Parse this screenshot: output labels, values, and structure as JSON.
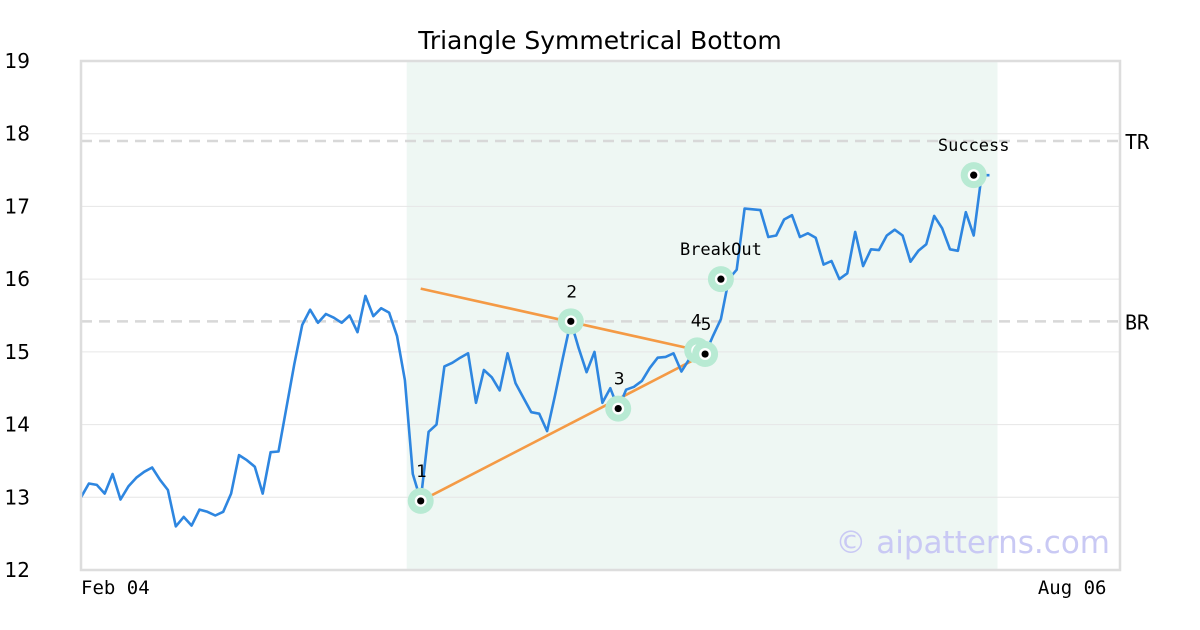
{
  "chart_data": {
    "type": "line",
    "title": "Triangle Symmetrical Bottom",
    "xlabel": "",
    "ylabel": "",
    "ylim": [
      12,
      19
    ],
    "yticks": [
      12,
      13,
      14,
      15,
      16,
      17,
      18,
      19
    ],
    "x_tick_labels": [
      {
        "label": "Feb 04",
        "index": 0
      },
      {
        "label": "Aug 06",
        "index": 125
      }
    ],
    "grid": "horizontal",
    "series": [
      {
        "color": "#2e86e0",
        "values": [
          13.0,
          13.19,
          13.17,
          13.05,
          13.32,
          12.97,
          13.15,
          13.27,
          13.35,
          13.41,
          13.24,
          13.1,
          12.6,
          12.73,
          12.61,
          12.83,
          12.8,
          12.75,
          12.8,
          13.05,
          13.58,
          13.51,
          13.42,
          13.05,
          13.62,
          13.63,
          14.23,
          14.83,
          15.37,
          15.58,
          15.4,
          15.52,
          15.47,
          15.4,
          15.5,
          15.27,
          15.77,
          15.49,
          15.6,
          15.54,
          15.22,
          14.61,
          13.32,
          12.96,
          13.9,
          14.0,
          14.8,
          14.85,
          14.92,
          14.98,
          14.3,
          14.75,
          14.65,
          14.47,
          14.98,
          14.57,
          14.37,
          14.17,
          14.15,
          13.91,
          14.4,
          14.92,
          15.42,
          15.05,
          14.72,
          15.0,
          14.3,
          14.5,
          14.22,
          14.48,
          14.52,
          14.6,
          14.78,
          14.92,
          14.93,
          14.98,
          14.73,
          14.9,
          15.05,
          14.97,
          15.22,
          15.45,
          16.0,
          16.13,
          16.97,
          16.96,
          16.95,
          16.58,
          16.6,
          16.82,
          16.88,
          16.58,
          16.63,
          16.57,
          16.2,
          16.25,
          16.0,
          16.08,
          16.65,
          16.18,
          16.41,
          16.4,
          16.6,
          16.68,
          16.6,
          16.24,
          16.39,
          16.48,
          16.87,
          16.7,
          16.41,
          16.39,
          16.92,
          16.6,
          17.43,
          17.43
        ]
      }
    ],
    "highlight_range": [
      43,
      115
    ],
    "highlight_color": "#eef7f3",
    "reference_lines": [
      {
        "label": "TR",
        "value": 17.9
      },
      {
        "label": "BR",
        "value": 15.42
      }
    ],
    "trend_lines": [
      {
        "color": "#f49a45",
        "from": [
          43,
          15.87
        ],
        "to": [
          79,
          15.0
        ]
      },
      {
        "color": "#f49a45",
        "from": [
          43,
          12.95
        ],
        "to": [
          79,
          14.97
        ]
      }
    ],
    "points": [
      {
        "label": "1",
        "index": 43,
        "value": 12.95,
        "label_pos": "above"
      },
      {
        "label": "2",
        "index": 62,
        "value": 15.42,
        "label_pos": "above"
      },
      {
        "label": "3",
        "index": 68,
        "value": 14.22,
        "label_pos": "above"
      },
      {
        "label": "4",
        "index": 78,
        "value": 15.02,
        "label_pos": "above-left"
      },
      {
        "label": "5",
        "index": 79,
        "value": 14.97,
        "label_pos": "above"
      }
    ],
    "annotations": [
      {
        "label": "BreakOut",
        "index": 81,
        "value": 16.0
      },
      {
        "label": "Success",
        "index": 113,
        "value": 17.43
      }
    ],
    "watermark": "© aipatterns.com"
  }
}
